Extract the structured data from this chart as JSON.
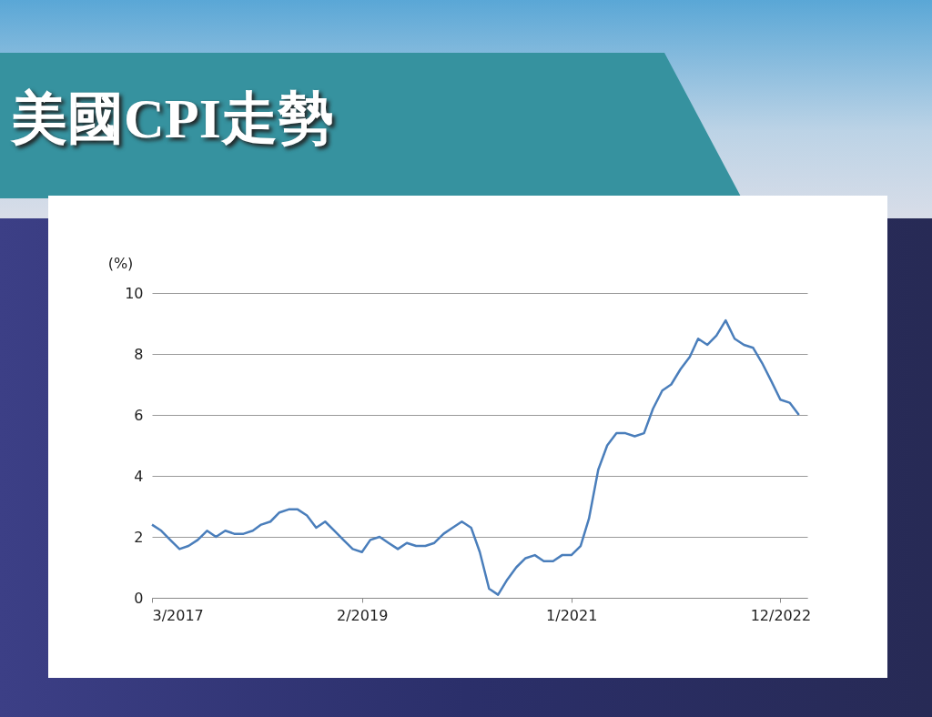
{
  "chart_data": {
    "type": "line",
    "title": "美國CPI走勢",
    "ylabel": "(%)",
    "x": [
      "2017-03",
      "2017-04",
      "2017-05",
      "2017-06",
      "2017-07",
      "2017-08",
      "2017-09",
      "2017-10",
      "2017-11",
      "2017-12",
      "2018-01",
      "2018-02",
      "2018-03",
      "2018-04",
      "2018-05",
      "2018-06",
      "2018-07",
      "2018-08",
      "2018-09",
      "2018-10",
      "2018-11",
      "2018-12",
      "2019-01",
      "2019-02",
      "2019-03",
      "2019-04",
      "2019-05",
      "2019-06",
      "2019-07",
      "2019-08",
      "2019-09",
      "2019-10",
      "2019-11",
      "2019-12",
      "2020-01",
      "2020-02",
      "2020-03",
      "2020-04",
      "2020-05",
      "2020-06",
      "2020-07",
      "2020-08",
      "2020-09",
      "2020-10",
      "2020-11",
      "2020-12",
      "2021-01",
      "2021-02",
      "2021-03",
      "2021-04",
      "2021-05",
      "2021-06",
      "2021-07",
      "2021-08",
      "2021-09",
      "2021-10",
      "2021-11",
      "2021-12",
      "2022-01",
      "2022-02",
      "2022-03",
      "2022-04",
      "2022-05",
      "2022-06",
      "2022-07",
      "2022-08",
      "2022-09",
      "2022-10",
      "2022-11",
      "2022-12",
      "2023-01",
      "2023-02"
    ],
    "series": [
      {
        "color": "#4a7ebb",
        "values": [
          2.4,
          2.2,
          1.9,
          1.6,
          1.7,
          1.9,
          2.2,
          2.0,
          2.2,
          2.1,
          2.1,
          2.2,
          2.4,
          2.5,
          2.8,
          2.9,
          2.9,
          2.7,
          2.3,
          2.5,
          2.2,
          1.9,
          1.6,
          1.5,
          1.9,
          2.0,
          1.8,
          1.6,
          1.8,
          1.7,
          1.7,
          1.8,
          2.1,
          2.3,
          2.5,
          2.3,
          1.5,
          0.3,
          0.1,
          0.6,
          1.0,
          1.3,
          1.4,
          1.2,
          1.2,
          1.4,
          1.4,
          1.7,
          2.6,
          4.2,
          5.0,
          5.4,
          5.4,
          5.3,
          5.4,
          6.2,
          6.8,
          7.0,
          7.5,
          7.9,
          8.5,
          8.3,
          8.6,
          9.1,
          8.5,
          8.3,
          8.2,
          7.7,
          7.1,
          6.5,
          6.4,
          6.0
        ]
      }
    ],
    "xlim": [
      "2017-03",
      "2023-03"
    ],
    "xticks": [
      {
        "value": "2017-03",
        "label": "3/2017"
      },
      {
        "value": "2019-02",
        "label": "2/2019"
      },
      {
        "value": "2021-01",
        "label": "1/2021"
      },
      {
        "value": "2022-12",
        "label": "12/2022"
      }
    ],
    "ylim": [
      0,
      10
    ],
    "yticks": [
      0,
      2,
      4,
      6,
      8,
      10
    ],
    "grid": "y",
    "marker": "none",
    "line_style": "solid"
  }
}
